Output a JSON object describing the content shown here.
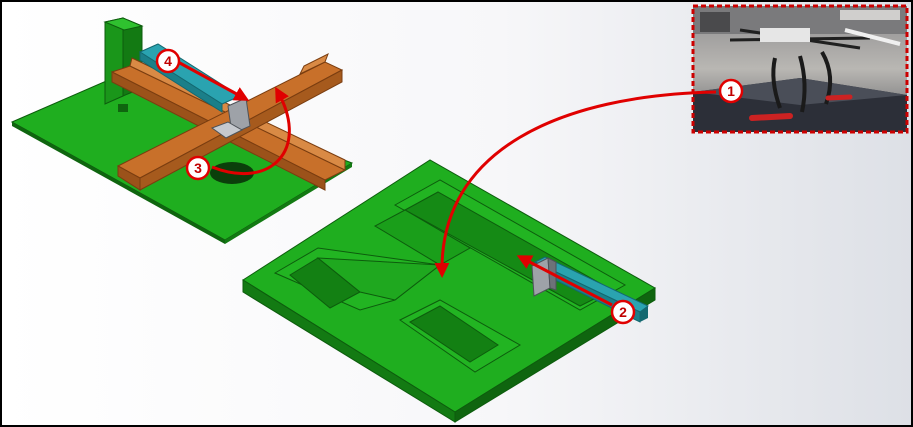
{
  "figure": {
    "steps": [
      {
        "number": "1"
      },
      {
        "number": "2"
      },
      {
        "number": "3"
      },
      {
        "number": "4"
      }
    ],
    "colors": {
      "base_green": "#1fae1f",
      "base_green_dark": "#137a13",
      "base_green_side": "#0f650f",
      "wood": "#c8702a",
      "wood_dark": "#9b521a",
      "rod": "#2aa3b0",
      "step_red": "#e00000",
      "frame": "#000000",
      "photo_border": "#cc0000"
    }
  }
}
